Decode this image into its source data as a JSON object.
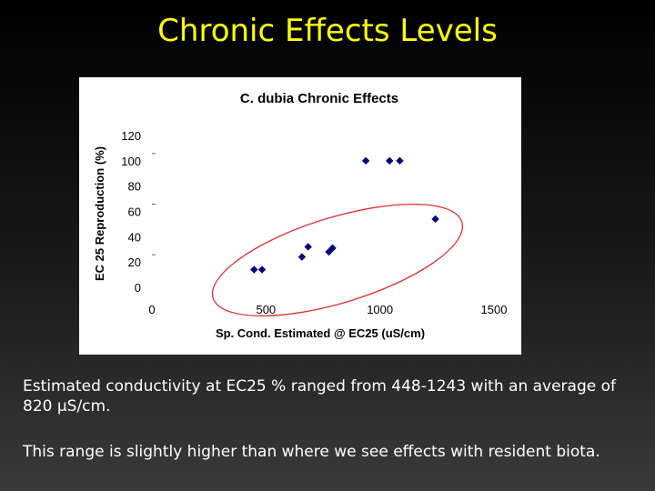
{
  "slide": {
    "title": "Chronic Effects Levels",
    "paragraph1": "Estimated conductivity at EC25 % ranged from 448-1243 with an average of 820 µS/cm.",
    "paragraph2": "This range is slightly higher than where we see effects with resident biota."
  },
  "colors": {
    "title": "#ffff00",
    "text": "#ffffff",
    "marker": "#000080",
    "ellipse": "#e03030"
  },
  "chart_data": {
    "type": "scatter",
    "title": "C. dubia Chronic Effects",
    "xlabel": "Sp. Cond. Estimated @ EC25 (uS/cm)",
    "ylabel": "EC 25 Reproduction (%)",
    "xlim": [
      0,
      1500
    ],
    "ylim": [
      0,
      120
    ],
    "xticks": [
      0,
      500,
      1000,
      1500
    ],
    "yticks": [
      0,
      20,
      40,
      60,
      80,
      100,
      120
    ],
    "grid": false,
    "legend": "none",
    "marker": "diamond",
    "points": [
      {
        "x": 448,
        "y": 14
      },
      {
        "x": 483,
        "y": 14
      },
      {
        "x": 658,
        "y": 24
      },
      {
        "x": 685,
        "y": 32
      },
      {
        "x": 776,
        "y": 28
      },
      {
        "x": 792,
        "y": 31
      },
      {
        "x": 938,
        "y": 100
      },
      {
        "x": 1042,
        "y": 100
      },
      {
        "x": 1087,
        "y": 100
      },
      {
        "x": 1243,
        "y": 54
      }
    ],
    "annotation": "ellipse enclosing data points"
  }
}
